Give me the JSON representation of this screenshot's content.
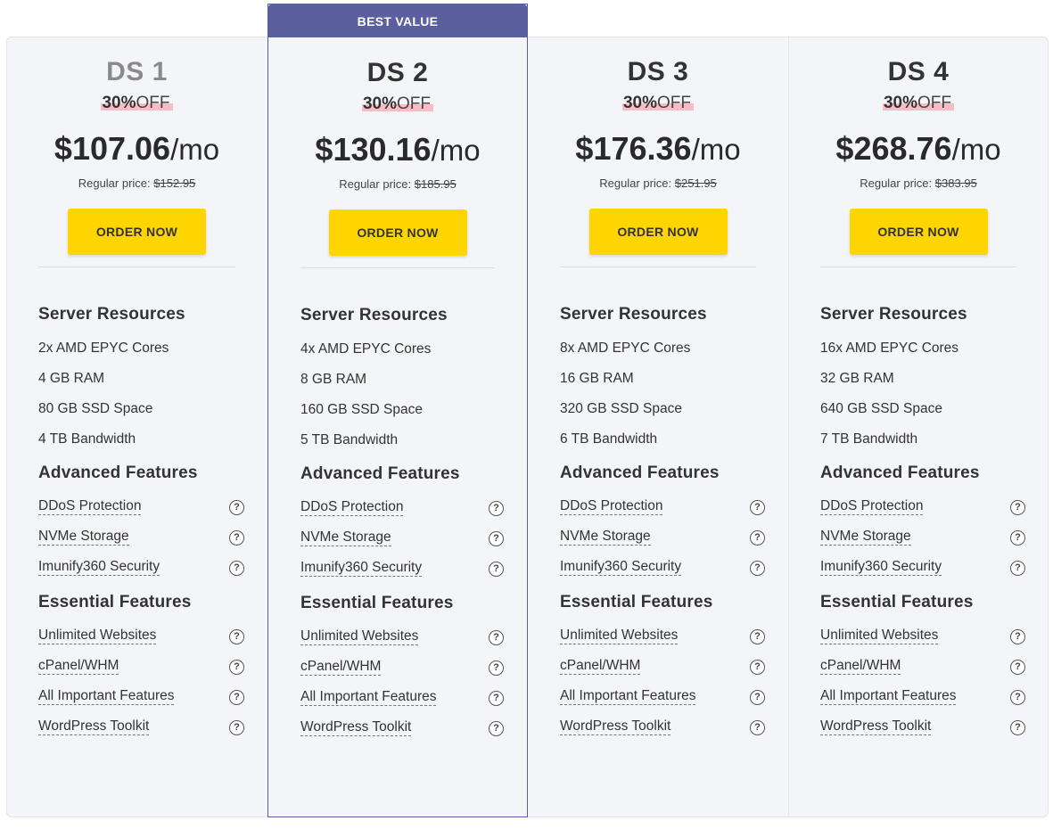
{
  "badge": "BEST VALUE",
  "labels": {
    "regular_prefix": "Regular price:",
    "per_month": "/mo",
    "off": "OFF",
    "server_resources": "Server Resources",
    "advanced_features": "Advanced Features",
    "essential_features": "Essential Features",
    "help_glyph": "?"
  },
  "plans": [
    {
      "name": "DS 1",
      "discount": "30%",
      "price": "$107.06",
      "regular": "$152.95",
      "button": "ORDER NOW",
      "resources": [
        "2x AMD EPYC Cores",
        "4 GB RAM",
        "80 GB SSD Space",
        "4 TB Bandwidth"
      ],
      "advanced": [
        "DDoS Protection",
        "NVMe Storage",
        "Imunify360 Security"
      ],
      "essential": [
        "Unlimited Websites",
        "cPanel/WHM",
        "All Important Features",
        "WordPress Toolkit"
      ]
    },
    {
      "name": "DS 2",
      "discount": "30%",
      "price": "$130.16",
      "regular": "$185.95",
      "button": "ORDER NOW",
      "resources": [
        "4x AMD EPYC Cores",
        "8 GB RAM",
        "160 GB SSD Space",
        "5 TB Bandwidth"
      ],
      "advanced": [
        "DDoS Protection",
        "NVMe Storage",
        "Imunify360 Security"
      ],
      "essential": [
        "Unlimited Websites",
        "cPanel/WHM",
        "All Important Features",
        "WordPress Toolkit"
      ]
    },
    {
      "name": "DS 3",
      "discount": "30%",
      "price": "$176.36",
      "regular": "$251.95",
      "button": "ORDER NOW",
      "resources": [
        "8x AMD EPYC Cores",
        "16 GB RAM",
        "320 GB SSD Space",
        "6 TB Bandwidth"
      ],
      "advanced": [
        "DDoS Protection",
        "NVMe Storage",
        "Imunify360 Security"
      ],
      "essential": [
        "Unlimited Websites",
        "cPanel/WHM",
        "All Important Features",
        "WordPress Toolkit"
      ]
    },
    {
      "name": "DS 4",
      "discount": "30%",
      "price": "$268.76",
      "regular": "$383.95",
      "button": "ORDER NOW",
      "resources": [
        "16x AMD EPYC Cores",
        "32 GB RAM",
        "640 GB SSD Space",
        "7 TB Bandwidth"
      ],
      "advanced": [
        "DDoS Protection",
        "NVMe Storage",
        "Imunify360 Security"
      ],
      "essential": [
        "Unlimited Websites",
        "cPanel/WHM",
        "All Important Features",
        "WordPress Toolkit"
      ]
    }
  ]
}
